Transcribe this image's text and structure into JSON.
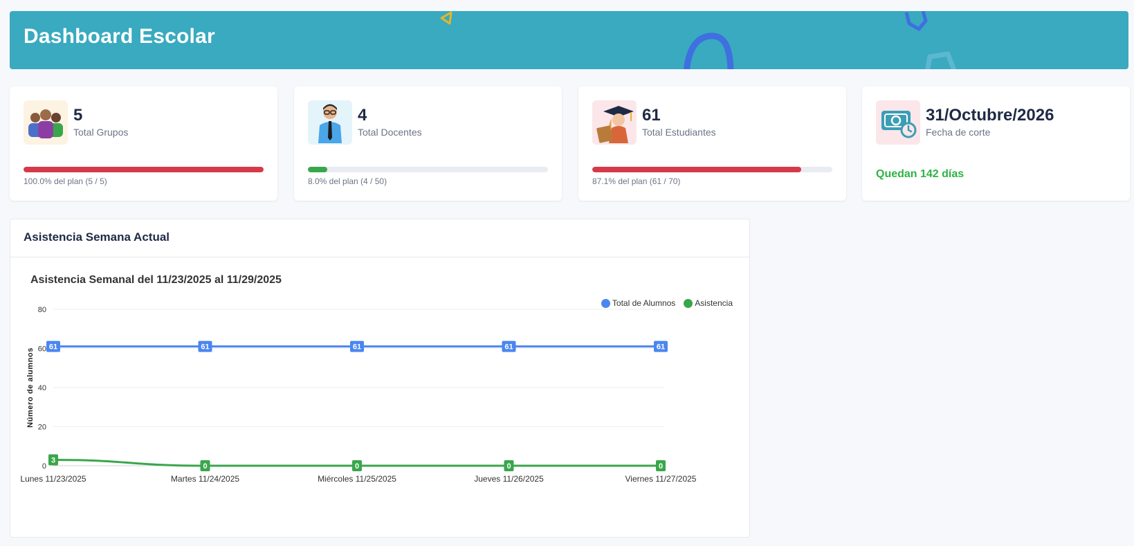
{
  "header": {
    "title": "Dashboard Escolar"
  },
  "cards": [
    {
      "value": "5",
      "label": "Total Grupos",
      "progress_text": "100.0% del plan (5 / 5)",
      "progress": 1.0,
      "bar_color": "#d63a48",
      "icon": "group-icon"
    },
    {
      "value": "4",
      "label": "Total Docentes",
      "progress_text": "8.0% del plan (4 / 50)",
      "progress": 0.08,
      "bar_color": "#3aa64b",
      "icon": "teacher-icon"
    },
    {
      "value": "61",
      "label": "Total Estudiantes",
      "progress_text": "87.1% del plan (61 / 70)",
      "progress": 0.871,
      "bar_color": "#d63a48",
      "icon": "student-icon"
    },
    {
      "value": "31/Octubre/2026",
      "label": "Fecha de corte",
      "remaining_text": "Quedan 142 días",
      "icon": "money-clock-icon"
    }
  ],
  "panel": {
    "title": "Asistencia Semana Actual"
  },
  "chart_data": {
    "type": "line",
    "title": "Asistencia Semanal del 11/23/2025 al 11/29/2025",
    "ylabel": "Número de alumnos",
    "xlabel": "",
    "categories": [
      "Lunes 11/23/2025",
      "Martes 11/24/2025",
      "Miércoles 11/25/2025",
      "Jueves 11/26/2025",
      "Viernes 11/27/2025"
    ],
    "ylim": [
      0,
      80
    ],
    "yticks": [
      0,
      20,
      40,
      60,
      80
    ],
    "grid": true,
    "legend": "top-right",
    "series": [
      {
        "name": "Total de Alumnos",
        "values": [
          61,
          61,
          61,
          61,
          61
        ],
        "color": "#4a86f0"
      },
      {
        "name": "Asistencia",
        "values": [
          3,
          0,
          0,
          0,
          0
        ],
        "color": "#3aa64b"
      }
    ]
  }
}
